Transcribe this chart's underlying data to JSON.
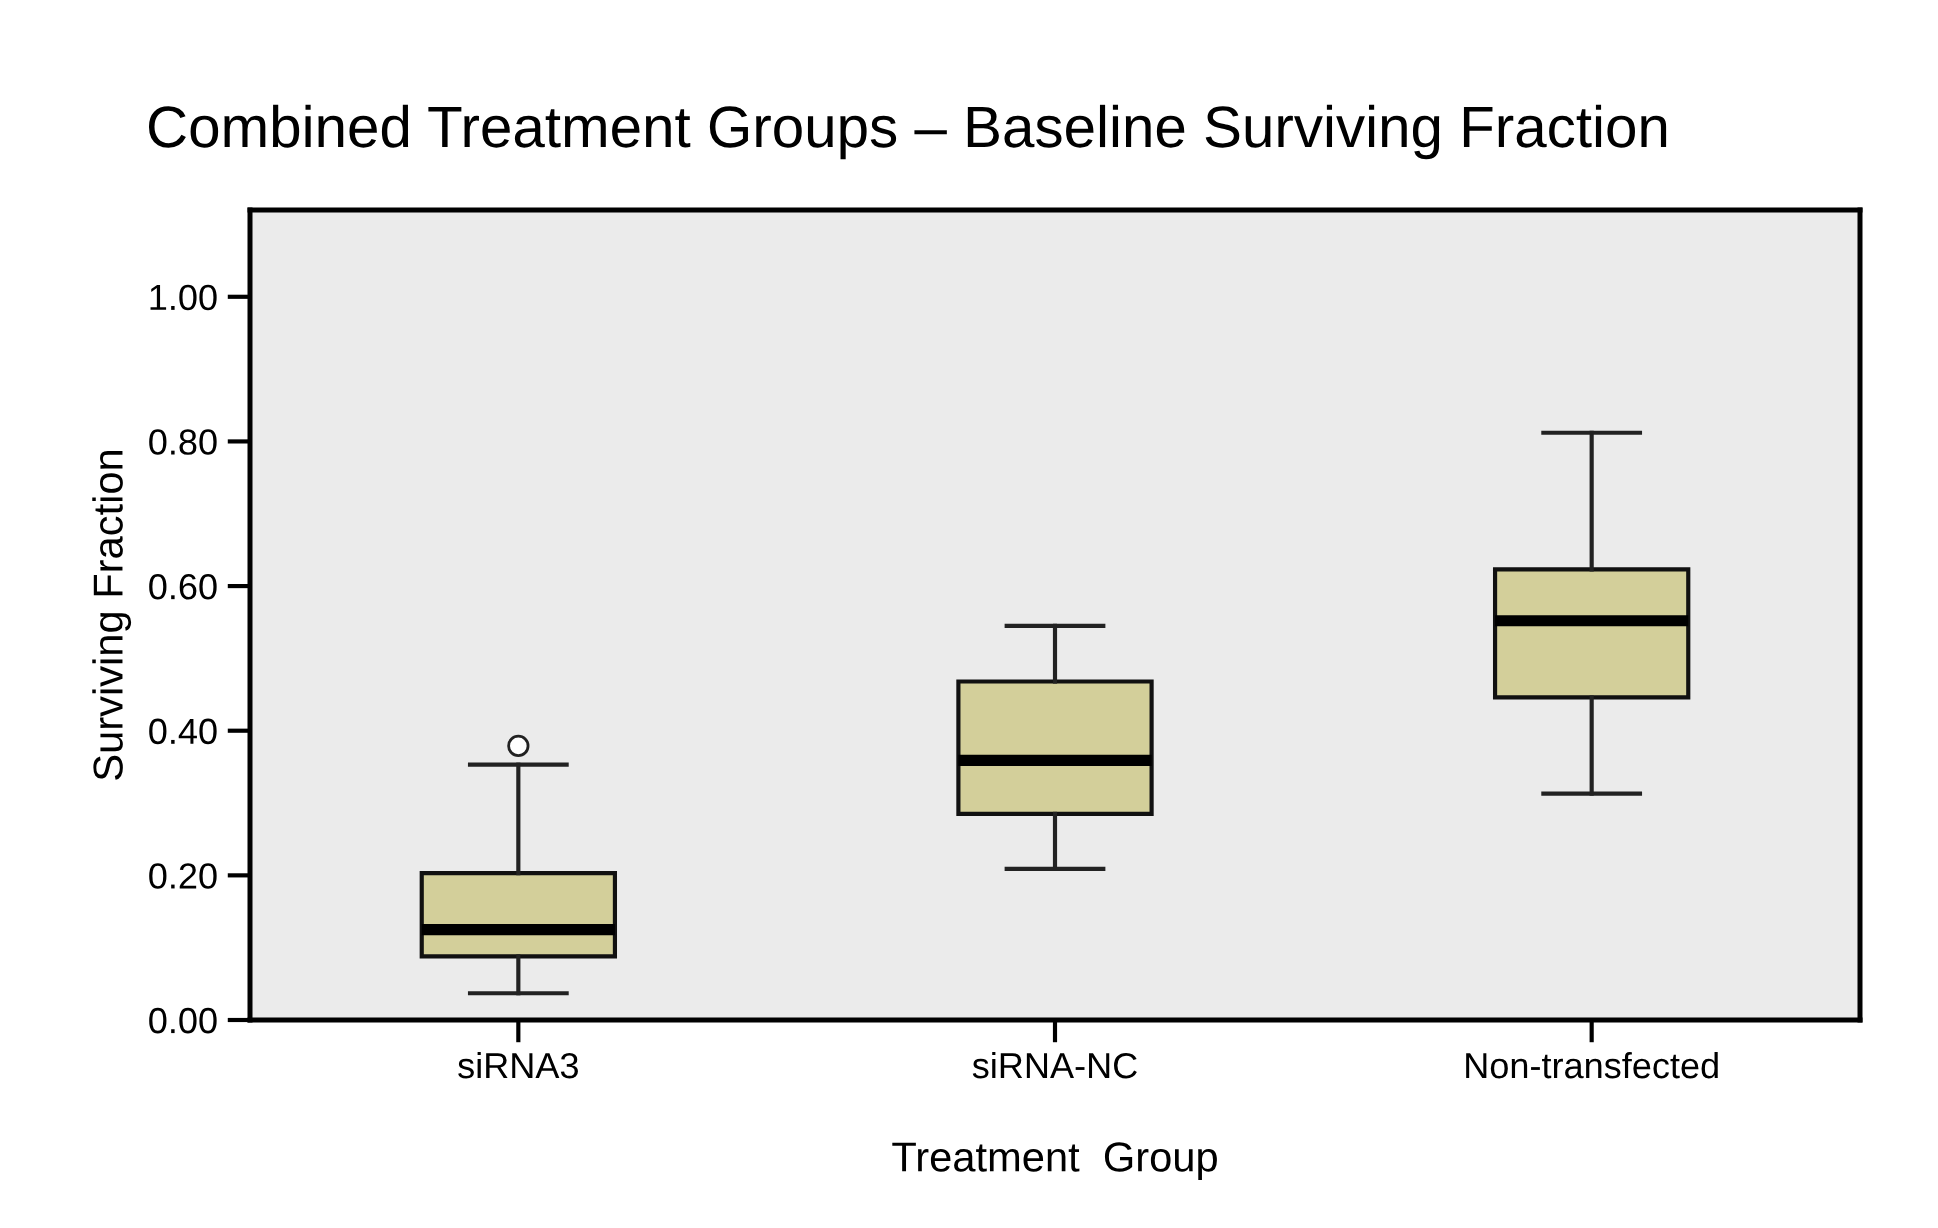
{
  "chart_data": {
    "type": "box",
    "title": "Combined Treatment Groups – Baseline Surviving Fraction",
    "xlabel": "Treatment  Group",
    "ylabel": "Surviving Fraction",
    "categories": [
      "siRNA3",
      "siRNA-NC",
      "Non-transfected"
    ],
    "boxes": [
      {
        "low": 0.037,
        "q1": 0.088,
        "median": 0.125,
        "q3": 0.203,
        "high": 0.353,
        "outliers": [
          0.379
        ]
      },
      {
        "low": 0.209,
        "q1": 0.285,
        "median": 0.359,
        "q3": 0.468,
        "high": 0.545
      },
      {
        "low": 0.313,
        "q1": 0.446,
        "median": 0.552,
        "q3": 0.623,
        "high": 0.812
      }
    ],
    "color": "#d3cf9a",
    "ylim": [
      0,
      1.12
    ],
    "yticks": [
      {
        "value": 0,
        "label": "0.00"
      },
      {
        "value": 0.2,
        "label": "0.20"
      },
      {
        "value": 0.4,
        "label": "0.40"
      },
      {
        "value": 0.6,
        "label": "0.60"
      },
      {
        "value": 0.8,
        "label": "0.80"
      },
      {
        "value": 1.0,
        "label": "1.00"
      }
    ],
    "grid": false,
    "legend": false
  }
}
